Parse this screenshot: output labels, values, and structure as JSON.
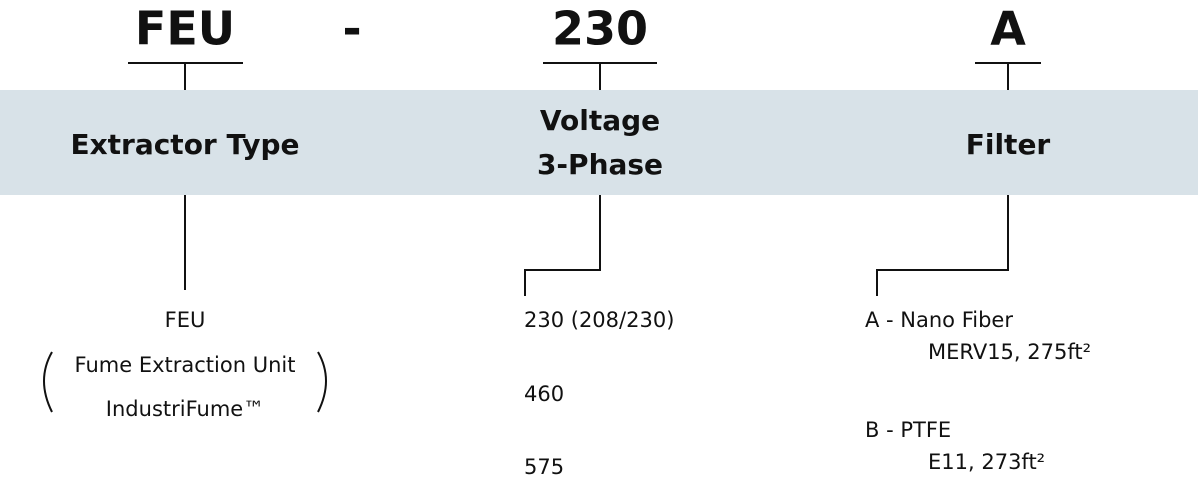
{
  "columns": [
    {
      "code": "FEU",
      "label": [
        "Extractor Type"
      ],
      "options": [
        {
          "lines": [
            "FEU",
            "Fume Extraction Unit",
            "IndustriFume™"
          ]
        }
      ]
    },
    {
      "code": "230",
      "label": [
        "Voltage",
        "3-Phase"
      ],
      "options": [
        {
          "lines": [
            "230 (208/230)"
          ]
        },
        {
          "lines": [
            "460"
          ]
        },
        {
          "lines": [
            "575"
          ]
        }
      ]
    },
    {
      "code": "A",
      "label": [
        "Filter"
      ],
      "options": [
        {
          "lines": [
            "A - Nano Fiber",
            "MERV15, 275ft²"
          ]
        },
        {
          "lines": [
            "B - PTFE",
            "E11, 273ft²"
          ]
        }
      ]
    }
  ],
  "separator": "-"
}
